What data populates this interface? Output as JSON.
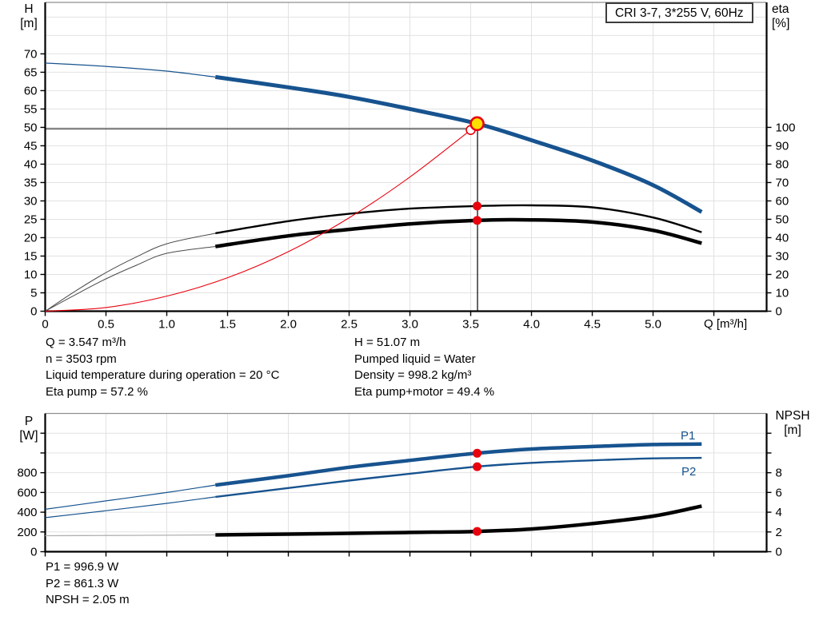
{
  "title": "CRI 3-7, 3*255 V, 60Hz",
  "colors": {
    "blue": "#17538f",
    "red": "#e8000d",
    "yellow": "#ffdf00",
    "black": "#000000",
    "grid": "#e2e2e2",
    "frame_top": "#8f8f8f",
    "gray_lead": "#4a4a4a",
    "npsh_lead": "#b0b0b0"
  },
  "axes_titles": {
    "top_left": [
      "H",
      "[m]"
    ],
    "top_right": [
      "eta",
      "[%]"
    ],
    "bottom_left": [
      "P",
      "[W]"
    ],
    "bottom_right": [
      "NPSH",
      "[m]"
    ],
    "x": "Q [m³/h]"
  },
  "series_labels": {
    "p1": "P1",
    "p2": "P2"
  },
  "info": {
    "left": [
      "Q = 3.547 m³/h",
      "n = 3503 rpm",
      "Liquid temperature during operation = 20 °C",
      "Eta pump = 57.2 %"
    ],
    "right": [
      "H = 51.07 m",
      "Pumped liquid = Water",
      "Density = 998.2 kg/m³",
      "Eta pump+motor = 49.4 %"
    ],
    "bottom": [
      "P1 = 996.9 W",
      "P2 = 861.3 W",
      "NPSH = 2.05 m"
    ]
  },
  "chart_data": [
    {
      "type": "line",
      "title": "CRI 3-7, 3*255 V, 60Hz",
      "xlabel": "Q [m³/h]",
      "ylabel_left": "H [m]",
      "ylabel_right": "eta [%]",
      "x": {
        "min": 0,
        "max": 5.934,
        "ticks": [
          0,
          0.5,
          1,
          1.5,
          2,
          2.5,
          3,
          3.5,
          4,
          4.5,
          5,
          5.5
        ],
        "tick_labels": [
          "0",
          "0.5",
          "1.0",
          "1.5",
          "2.0",
          "2.5",
          "3.0",
          "3.5",
          "4.0",
          "4.5",
          "5.0",
          null
        ]
      },
      "y_left": {
        "min": 0,
        "max": 84,
        "ticks": [
          0,
          5,
          10,
          15,
          20,
          25,
          30,
          35,
          40,
          45,
          50,
          55,
          60,
          65,
          70
        ],
        "tick_labels": [
          "0",
          "5",
          "10",
          "15",
          "20",
          "25",
          "30",
          "35",
          "40",
          "45",
          "50",
          "55",
          "60",
          "65",
          "70"
        ]
      },
      "y_right": {
        "min": 0,
        "max": 168,
        "ticks": [
          0,
          10,
          20,
          30,
          40,
          50,
          60,
          70,
          80,
          90,
          100
        ],
        "tick_labels": [
          "0",
          "10",
          "20",
          "30",
          "40",
          "50",
          "60",
          "70",
          "80",
          "90",
          "100"
        ]
      },
      "duty_lines": {
        "q": 3.556,
        "v_end": 51.0,
        "h_value": 49.6,
        "h_q_end": 3.5
      },
      "series": [
        {
          "name": "pump-head-curve",
          "axis": "left",
          "color": "blue",
          "thin_until": 1.4,
          "w_thin": 1.2,
          "w_thick": 5,
          "points": [
            [
              0,
              67.5
            ],
            [
              0.5,
              66.6
            ],
            [
              1,
              65.3
            ],
            [
              1.4,
              63.7
            ],
            [
              2,
              60.9
            ],
            [
              2.5,
              58.3
            ],
            [
              3,
              55.0
            ],
            [
              3.547,
              51.07
            ],
            [
              4,
              46.5
            ],
            [
              4.5,
              41.0
            ],
            [
              5,
              34.3
            ],
            [
              5.4,
              27.0
            ]
          ]
        },
        {
          "name": "eta-pump-curve",
          "axis": "right",
          "color": "black",
          "thin_color": "gray_lead",
          "thin_until": 1.4,
          "w_thin": 1,
          "w_thick": 2.4,
          "points": [
            [
              0,
              0
            ],
            [
              0.25,
              11
            ],
            [
              0.5,
              21
            ],
            [
              0.75,
              29.5
            ],
            [
              1,
              36.7
            ],
            [
              1.4,
              42.4
            ],
            [
              2,
              49
            ],
            [
              2.5,
              53
            ],
            [
              3,
              55.8
            ],
            [
              3.547,
              57.2
            ],
            [
              4,
              57.6
            ],
            [
              4.5,
              56.5
            ],
            [
              5,
              51
            ],
            [
              5.4,
              43
            ]
          ]
        },
        {
          "name": "eta-pump-motor-curve",
          "axis": "right",
          "color": "black",
          "thin_color": "gray_lead",
          "thin_until": 1.4,
          "w_thin": 1,
          "w_thick": 4.5,
          "points": [
            [
              0,
              0
            ],
            [
              0.25,
              9
            ],
            [
              0.5,
              17.6
            ],
            [
              0.75,
              25
            ],
            [
              1,
              31.5
            ],
            [
              1.4,
              35.2
            ],
            [
              2,
              41
            ],
            [
              2.5,
              44.5
            ],
            [
              3,
              47.5
            ],
            [
              3.547,
              49.4
            ],
            [
              4,
              49.7
            ],
            [
              4.5,
              48.5
            ],
            [
              5,
              44
            ],
            [
              5.4,
              37
            ]
          ]
        },
        {
          "name": "system-curve",
          "axis": "left",
          "color": "red",
          "thin_until": 99,
          "w_thin": 1.1,
          "w_thick": 1.1,
          "points": [
            [
              0,
              0
            ],
            [
              0.5,
              1.0
            ],
            [
              1,
              4.1
            ],
            [
              1.5,
              9.1
            ],
            [
              2,
              16.2
            ],
            [
              2.5,
              25.4
            ],
            [
              3,
              36.5
            ],
            [
              3.5,
              49.3
            ]
          ]
        }
      ],
      "markers": [
        {
          "name": "system-duty-point",
          "q": 3.5,
          "v": 49.3,
          "axis": "left",
          "style": "open"
        },
        {
          "name": "duty-point",
          "q": 3.553,
          "v": 51.0,
          "axis": "left",
          "style": "duty"
        },
        {
          "name": "eta-pump-point",
          "q": 3.553,
          "v": 57.2,
          "axis": "right",
          "style": "dot"
        },
        {
          "name": "eta-pump-motor-point",
          "q": 3.553,
          "v": 49.4,
          "axis": "right",
          "style": "dot"
        }
      ]
    },
    {
      "type": "line",
      "xlabel": "",
      "ylabel_left": "P [W]",
      "ylabel_right": "NPSH [m]",
      "x": {
        "min": 0,
        "max": 5.934,
        "ticks": [
          0,
          0.5,
          1,
          1.5,
          2,
          2.5,
          3,
          3.5,
          4,
          4.5,
          5,
          5.5
        ],
        "tick_labels": [
          null,
          null,
          null,
          null,
          null,
          null,
          null,
          null,
          null,
          null,
          null,
          null
        ]
      },
      "y_left": {
        "min": 0,
        "max": 1400,
        "ticks": [
          0,
          200,
          400,
          600,
          800,
          1000,
          1200
        ],
        "tick_labels": [
          "0",
          "200",
          "400",
          "600",
          "800",
          null,
          null
        ]
      },
      "y_right": {
        "min": 0,
        "max": 14,
        "ticks": [
          0,
          2,
          4,
          6,
          8,
          10,
          12
        ],
        "tick_labels": [
          "0",
          "2",
          "4",
          "6",
          "8",
          null,
          null
        ]
      },
      "series": [
        {
          "name": "p1-power-curve",
          "axis": "left",
          "color": "blue",
          "thin_until": 1.4,
          "w_thin": 1.2,
          "w_thick": 4.5,
          "points": [
            [
              0,
              430
            ],
            [
              0.5,
              515
            ],
            [
              1,
              600
            ],
            [
              1.4,
              675
            ],
            [
              2,
              770
            ],
            [
              2.5,
              855
            ],
            [
              3,
              925
            ],
            [
              3.547,
              997
            ],
            [
              4,
              1040
            ],
            [
              4.5,
              1065
            ],
            [
              5,
              1085
            ],
            [
              5.4,
              1090
            ]
          ]
        },
        {
          "name": "p2-power-curve",
          "axis": "left",
          "color": "blue",
          "thin_until": 1.4,
          "w_thin": 1.2,
          "w_thick": 2.4,
          "points": [
            [
              0,
              345
            ],
            [
              0.5,
              415
            ],
            [
              1,
              490
            ],
            [
              1.4,
              555
            ],
            [
              2,
              645
            ],
            [
              2.5,
              720
            ],
            [
              3,
              790
            ],
            [
              3.547,
              861
            ],
            [
              4,
              900
            ],
            [
              4.5,
              925
            ],
            [
              5,
              945
            ],
            [
              5.4,
              950
            ]
          ]
        },
        {
          "name": "npsh-curve",
          "axis": "right",
          "color": "black",
          "thin_color": "npsh_lead",
          "thin_until": 1.4,
          "w_thin": 1.3,
          "w_thick": 4.5,
          "points": [
            [
              0,
              1.62
            ],
            [
              0.5,
              1.64
            ],
            [
              1,
              1.67
            ],
            [
              1.4,
              1.7
            ],
            [
              2,
              1.78
            ],
            [
              2.5,
              1.86
            ],
            [
              3,
              1.95
            ],
            [
              3.547,
              2.05
            ],
            [
              4,
              2.3
            ],
            [
              4.5,
              2.85
            ],
            [
              5,
              3.6
            ],
            [
              5.4,
              4.62
            ]
          ]
        }
      ],
      "markers": [
        {
          "name": "p1-point",
          "q": 3.553,
          "v": 997,
          "axis": "left",
          "style": "dot"
        },
        {
          "name": "p2-point",
          "q": 3.553,
          "v": 861,
          "axis": "left",
          "style": "dot"
        },
        {
          "name": "npsh-point",
          "q": 3.553,
          "v": 2.05,
          "axis": "right",
          "style": "dot"
        }
      ]
    }
  ]
}
